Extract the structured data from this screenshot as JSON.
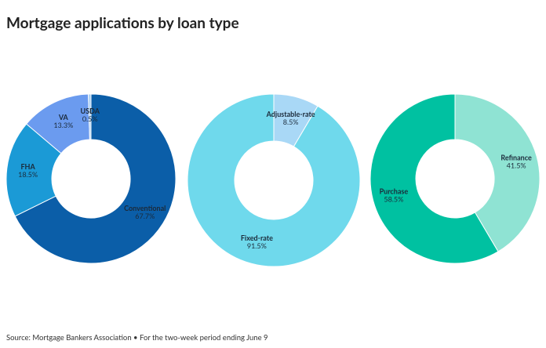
{
  "title": "Mortgage applications by loan type",
  "source": "Source: Mortgage Bankers Association • For the two-week period ending June 9",
  "chart_data": [
    {
      "type": "pie",
      "categories": [
        "Conventional",
        "FHA",
        "VA",
        "USDA"
      ],
      "values": [
        67.7,
        18.5,
        13.3,
        0.5
      ],
      "value_labels": [
        "67.7%",
        "18.5%",
        "13.3%",
        "0.5%"
      ],
      "colors": [
        "#0b5ea8",
        "#1b9ad6",
        "#6b9bef",
        "#a9cff2"
      ]
    },
    {
      "type": "pie",
      "categories": [
        "Adjustable-rate",
        "Fixed-rate"
      ],
      "values": [
        8.5,
        91.5
      ],
      "value_labels": [
        "8.5%",
        "91.5%"
      ],
      "colors": [
        "#a9d8f6",
        "#6fd9ec"
      ]
    },
    {
      "type": "pie",
      "categories": [
        "Refinance",
        "Purchase"
      ],
      "values": [
        41.5,
        58.5
      ],
      "value_labels": [
        "41.5%",
        "58.5%"
      ],
      "colors": [
        "#8fe3d3",
        "#00c1a1"
      ]
    }
  ]
}
